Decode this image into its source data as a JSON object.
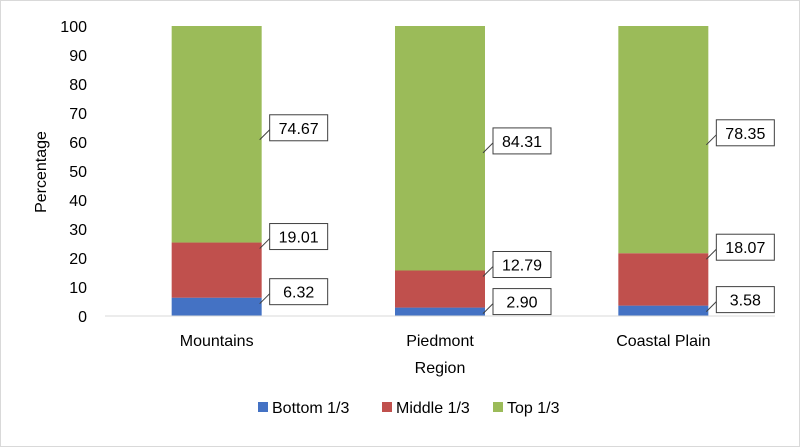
{
  "chart_data": {
    "type": "bar",
    "stacked": true,
    "title": "",
    "xlabel": "Region",
    "ylabel": "Percentage",
    "ylim": [
      0,
      100
    ],
    "yticks": [
      0,
      10,
      20,
      30,
      40,
      50,
      60,
      70,
      80,
      90,
      100
    ],
    "categories": [
      "Mountains",
      "Piedmont",
      "Coastal Plain"
    ],
    "series": [
      {
        "name": "Bottom 1/3",
        "color": "#4472c4",
        "values": [
          6.32,
          2.9,
          3.58
        ],
        "labels": [
          "6.32",
          "2.90",
          "3.58"
        ]
      },
      {
        "name": "Middle 1/3",
        "color": "#c0504d",
        "values": [
          19.01,
          12.79,
          18.07
        ],
        "labels": [
          "19.01",
          "12.79",
          "18.07"
        ]
      },
      {
        "name": "Top 1/3",
        "color": "#9bbb59",
        "values": [
          74.67,
          84.31,
          78.35
        ],
        "labels": [
          "74.67",
          "84.31",
          "78.35"
        ]
      }
    ],
    "grid": false,
    "legend": "bottom"
  }
}
